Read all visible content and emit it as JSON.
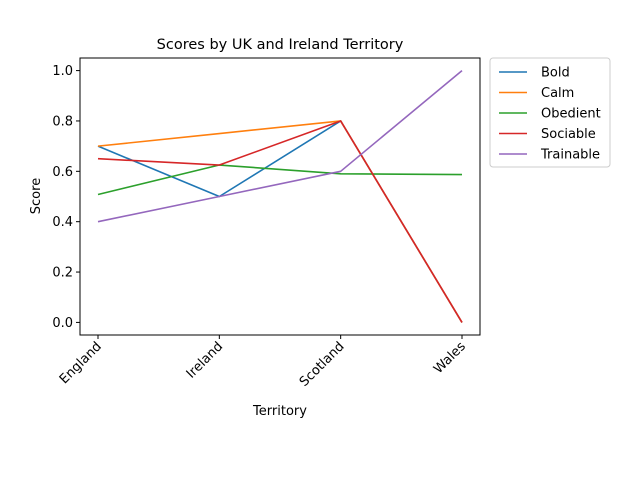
{
  "chart_data": {
    "type": "line",
    "title": "Scores by UK and Ireland Territory",
    "xlabel": "Territory",
    "ylabel": "Score",
    "categories": [
      "England",
      "Ireland",
      "Scotland",
      "Wales"
    ],
    "ylim": [
      -0.05,
      1.05
    ],
    "yticks": [
      0.0,
      0.2,
      0.4,
      0.6,
      0.8,
      1.0
    ],
    "ytick_labels": [
      "0.0",
      "0.2",
      "0.4",
      "0.6",
      "0.8",
      "1.0"
    ],
    "grid": false,
    "legend_position": "outside-upper-right",
    "series": [
      {
        "name": "Bold",
        "color": "#1f77b4",
        "values": [
          0.7,
          0.5,
          0.8,
          0.0
        ]
      },
      {
        "name": "Calm",
        "color": "#ff7f0e",
        "values": [
          0.7,
          0.75,
          0.8,
          0.0
        ]
      },
      {
        "name": "Obedient",
        "color": "#2ca02c",
        "values": [
          0.508,
          0.625,
          0.59,
          0.587
        ]
      },
      {
        "name": "Sociable",
        "color": "#d62728",
        "values": [
          0.65,
          0.625,
          0.8,
          0.0
        ]
      },
      {
        "name": "Trainable",
        "color": "#9467bd",
        "values": [
          0.4,
          0.5,
          0.6,
          1.0
        ]
      }
    ]
  }
}
